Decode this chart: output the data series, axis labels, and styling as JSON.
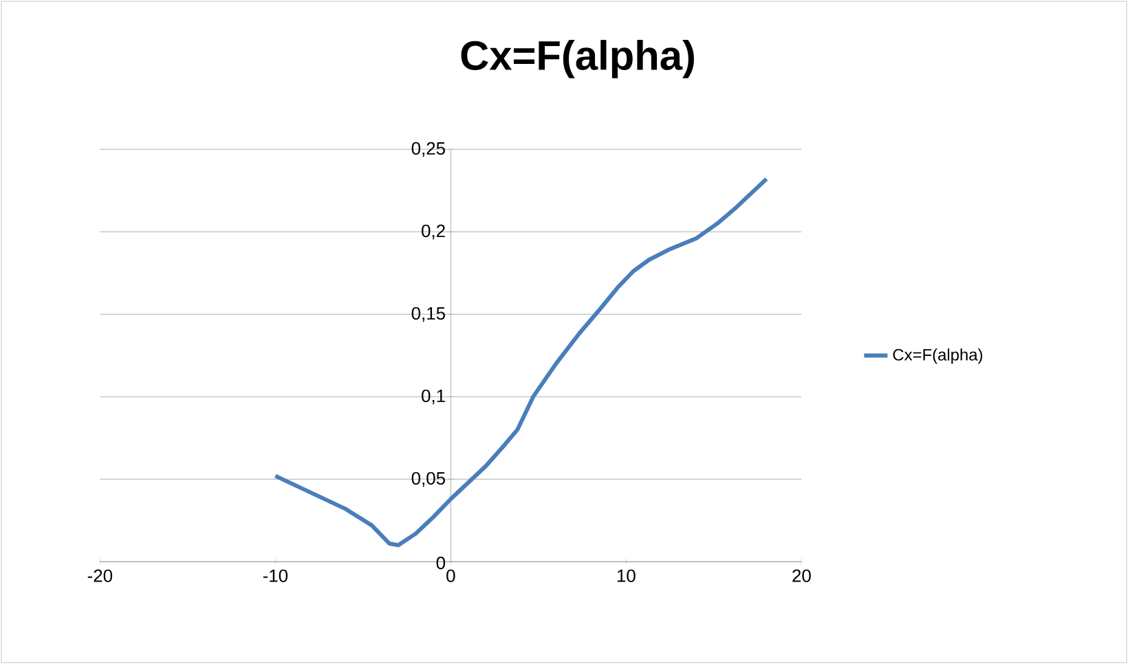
{
  "chart_data": {
    "type": "line",
    "title": "Cx=F(alpha)",
    "series": [
      {
        "name": "Cx=F(alpha)",
        "color": "#4a7ebb",
        "x": [
          -10,
          -8,
          -6,
          -4.5,
          -3.5,
          -3,
          -2,
          -1,
          0,
          1,
          2,
          3,
          3.8,
          4.7,
          6,
          7.3,
          8.5,
          9.5,
          10.4,
          11.3,
          12.4,
          14,
          15.2,
          16.3,
          18
        ],
        "values": [
          0.052,
          0.042,
          0.032,
          0.022,
          0.011,
          0.01,
          0.017,
          0.027,
          0.038,
          0.048,
          0.058,
          0.07,
          0.08,
          0.1,
          0.12,
          0.138,
          0.153,
          0.166,
          0.176,
          0.183,
          0.189,
          0.196,
          0.205,
          0.215,
          0.232
        ]
      }
    ],
    "xlim": [
      -20,
      20
    ],
    "xticks": [
      -20,
      -10,
      0,
      10,
      20
    ],
    "ylim": [
      0,
      0.25
    ],
    "yticks": [
      {
        "value": 0,
        "label": "0"
      },
      {
        "value": 0.05,
        "label": "0,05"
      },
      {
        "value": 0.1,
        "label": "0,1"
      },
      {
        "value": 0.15,
        "label": "0,15"
      },
      {
        "value": 0.2,
        "label": "0,2"
      },
      {
        "value": 0.25,
        "label": "0,25"
      }
    ],
    "grid": "y",
    "legend": "right",
    "marker": "none",
    "line_style": "solid"
  }
}
